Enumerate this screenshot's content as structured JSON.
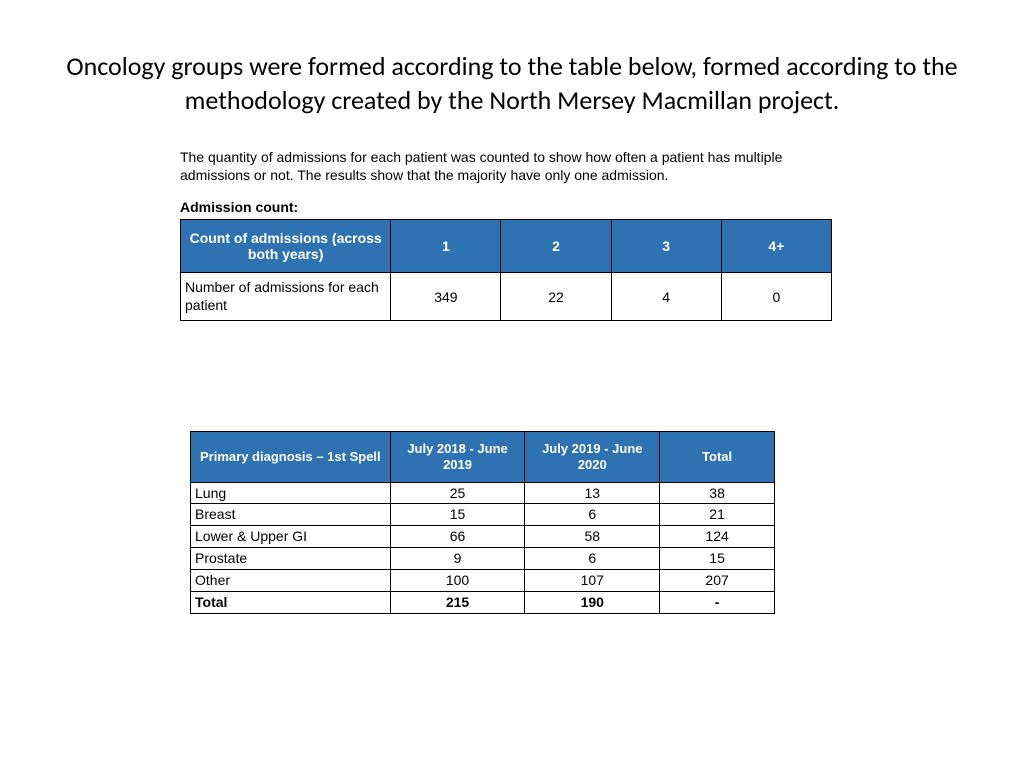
{
  "title": "Oncology groups were formed according to the table below, formed according to the methodology created by the North Mersey Macmillan project.",
  "intro_text": "The quantity of admissions for each patient was counted to show how often a patient has multiple admissions or not. The results show that the majority have only one admission.",
  "subheading": "Admission count:",
  "colors": {
    "header_bg": "#2f72b2",
    "header_fg": "#ffffff",
    "cell_bg": "#ffffff",
    "border": "#000000",
    "page_bg": "#ffffff",
    "title_color": "#000000"
  },
  "table1": {
    "header_rowlabel": "Count of admissions (across both years)",
    "columns": [
      "1",
      "2",
      "3",
      "4+"
    ],
    "row_label": "Number of admissions for each patient",
    "row_values": [
      "349",
      "22",
      "4",
      "0"
    ]
  },
  "table2": {
    "columns": [
      "Primary diagnosis – 1st Spell",
      "July 2018 - June 2019",
      "July 2019 - June 2020",
      "Total"
    ],
    "rows": [
      {
        "label": "Lung",
        "v1": "25",
        "v2": "13",
        "total": "38"
      },
      {
        "label": "Breast",
        "v1": "15",
        "v2": "6",
        "total": "21"
      },
      {
        "label": "Lower & Upper GI",
        "v1": "66",
        "v2": "58",
        "total": "124"
      },
      {
        "label": "Prostate",
        "v1": "9",
        "v2": "6",
        "total": "15"
      },
      {
        "label": "Other",
        "v1": "100",
        "v2": "107",
        "total": "207"
      }
    ],
    "total_row": {
      "label": "Total",
      "v1": "215",
      "v2": "190",
      "total": "-"
    }
  }
}
